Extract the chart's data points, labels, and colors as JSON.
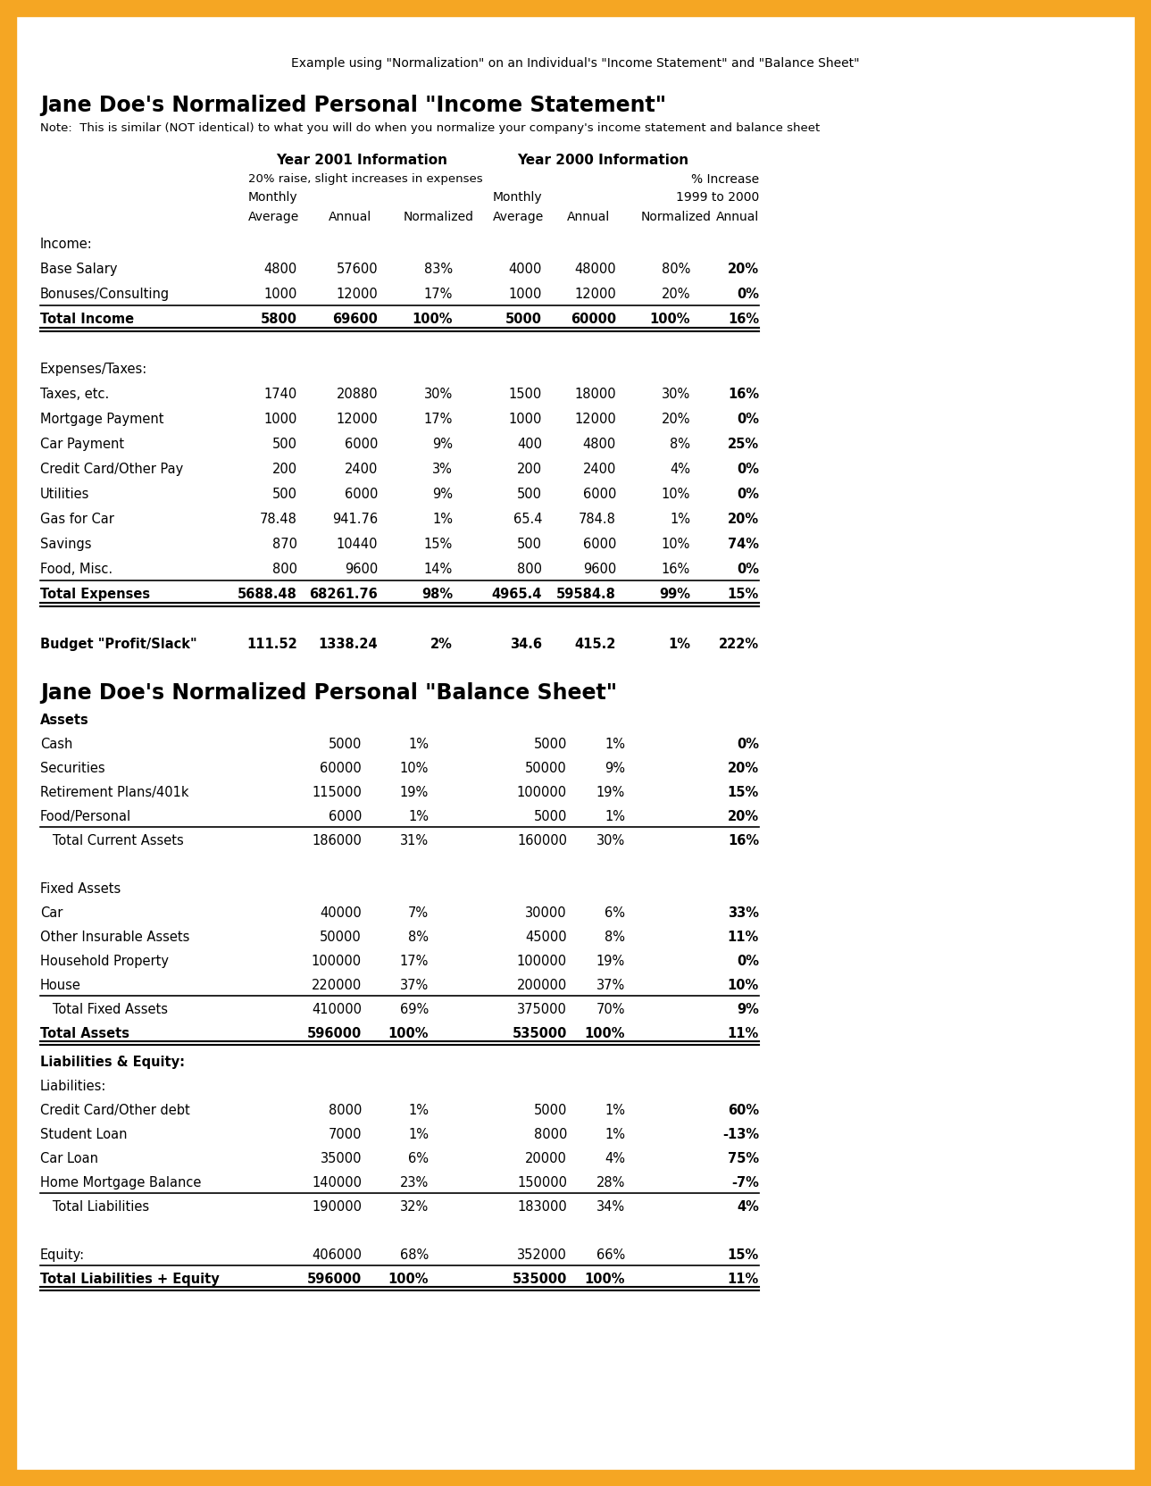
{
  "border_color": "#F5A623",
  "bg_color": "#FFFFFF",
  "top_note": "Example using \"Normalization\" on an Individual's \"Income Statement\" and \"Balance Sheet\"",
  "income_title": "Jane Doe's Normalized Personal \"Income Statement\"",
  "income_note": "Note:  This is similar (NOT identical) to what you will do when you normalize your company's income statement and balance sheet",
  "balance_title": "Jane Doe's Normalized Personal \"Balance Sheet\"",
  "col_headers": {
    "year2001": "Year 2001 Information",
    "year2001_sub": "20% raise, slight increases in expenses",
    "year2000": "Year 2000 Information",
    "monthly": "Monthly",
    "average": "Average",
    "annual": "Annual",
    "normalized": "Normalized",
    "pct_increase": "% Increase",
    "year_range": "1999 to 2000",
    "annual2": "Annual"
  },
  "income_rows": [
    {
      "label": "Income:",
      "bold": false,
      "values": [
        "",
        "",
        "",
        "",
        "",
        "",
        ""
      ],
      "underline": false,
      "double_underline": false
    },
    {
      "label": "Base Salary",
      "bold": false,
      "values": [
        "4800",
        "57600",
        "83%",
        "4000",
        "48000",
        "80%",
        "20%"
      ],
      "underline": false,
      "double_underline": false,
      "last_bold": true
    },
    {
      "label": "Bonuses/Consulting",
      "bold": false,
      "values": [
        "1000",
        "12000",
        "17%",
        "1000",
        "12000",
        "20%",
        "0%"
      ],
      "underline": true,
      "double_underline": false,
      "last_bold": true
    },
    {
      "label": "Total Income",
      "bold": true,
      "values": [
        "5800",
        "69600",
        "100%",
        "5000",
        "60000",
        "100%",
        "16%"
      ],
      "underline": false,
      "double_underline": true,
      "last_bold": true
    },
    {
      "label": "",
      "bold": false,
      "values": [
        "",
        "",
        "",
        "",
        "",
        "",
        ""
      ],
      "underline": false,
      "double_underline": false
    },
    {
      "label": "Expenses/Taxes:",
      "bold": false,
      "values": [
        "",
        "",
        "",
        "",
        "",
        "",
        ""
      ],
      "underline": false,
      "double_underline": false
    },
    {
      "label": "Taxes, etc.",
      "bold": false,
      "values": [
        "1740",
        "20880",
        "30%",
        "1500",
        "18000",
        "30%",
        "16%"
      ],
      "underline": false,
      "double_underline": false,
      "last_bold": true
    },
    {
      "label": "Mortgage Payment",
      "bold": false,
      "values": [
        "1000",
        "12000",
        "17%",
        "1000",
        "12000",
        "20%",
        "0%"
      ],
      "underline": false,
      "double_underline": false,
      "last_bold": true
    },
    {
      "label": "Car Payment",
      "bold": false,
      "values": [
        "500",
        "6000",
        "9%",
        "400",
        "4800",
        "8%",
        "25%"
      ],
      "underline": false,
      "double_underline": false,
      "last_bold": true
    },
    {
      "label": "Credit Card/Other Pay",
      "bold": false,
      "values": [
        "200",
        "2400",
        "3%",
        "200",
        "2400",
        "4%",
        "0%"
      ],
      "underline": false,
      "double_underline": false,
      "last_bold": true
    },
    {
      "label": "Utilities",
      "bold": false,
      "values": [
        "500",
        "6000",
        "9%",
        "500",
        "6000",
        "10%",
        "0%"
      ],
      "underline": false,
      "double_underline": false,
      "last_bold": true
    },
    {
      "label": "Gas for Car",
      "bold": false,
      "values": [
        "78.48",
        "941.76",
        "1%",
        "65.4",
        "784.8",
        "1%",
        "20%"
      ],
      "underline": false,
      "double_underline": false,
      "last_bold": true
    },
    {
      "label": "Savings",
      "bold": false,
      "values": [
        "870",
        "10440",
        "15%",
        "500",
        "6000",
        "10%",
        "74%"
      ],
      "underline": false,
      "double_underline": false,
      "last_bold": true
    },
    {
      "label": "Food, Misc.",
      "bold": false,
      "values": [
        "800",
        "9600",
        "14%",
        "800",
        "9600",
        "16%",
        "0%"
      ],
      "underline": true,
      "double_underline": false,
      "last_bold": true
    },
    {
      "label": "Total Expenses",
      "bold": true,
      "values": [
        "5688.48",
        "68261.76",
        "98%",
        "4965.4",
        "59584.8",
        "99%",
        "15%"
      ],
      "underline": false,
      "double_underline": true,
      "last_bold": true
    },
    {
      "label": "",
      "bold": false,
      "values": [
        "",
        "",
        "",
        "",
        "",
        "",
        ""
      ],
      "underline": false,
      "double_underline": false
    },
    {
      "label": "Budget \"Profit/Slack\"",
      "bold": true,
      "values": [
        "111.52",
        "1338.24",
        "2%",
        "34.6",
        "415.2",
        "1%",
        "222%"
      ],
      "underline": false,
      "double_underline": false,
      "last_bold": true
    }
  ],
  "balance_assets_rows": [
    {
      "label": "Assets",
      "bold": true,
      "values": [
        "",
        "",
        "",
        "",
        ""
      ],
      "underline": false,
      "double_underline": false
    },
    {
      "label": "Cash",
      "bold": false,
      "values": [
        "5000",
        "1%",
        "5000",
        "1%",
        "0%"
      ],
      "underline": false,
      "double_underline": false,
      "last_bold": true
    },
    {
      "label": "Securities",
      "bold": false,
      "values": [
        "60000",
        "10%",
        "50000",
        "9%",
        "20%"
      ],
      "underline": false,
      "double_underline": false,
      "last_bold": true
    },
    {
      "label": "Retirement Plans/401k",
      "bold": false,
      "values": [
        "115000",
        "19%",
        "100000",
        "19%",
        "15%"
      ],
      "underline": false,
      "double_underline": false,
      "last_bold": true
    },
    {
      "label": "Food/Personal",
      "bold": false,
      "values": [
        "6000",
        "1%",
        "5000",
        "1%",
        "20%"
      ],
      "underline": true,
      "double_underline": false,
      "last_bold": true
    },
    {
      "label": "   Total Current Assets",
      "bold": false,
      "values": [
        "186000",
        "31%",
        "160000",
        "30%",
        "16%"
      ],
      "underline": false,
      "double_underline": false,
      "last_bold": true
    },
    {
      "label": "",
      "bold": false,
      "values": [
        "",
        "",
        "",
        "",
        ""
      ],
      "underline": false,
      "double_underline": false
    },
    {
      "label": "Fixed Assets",
      "bold": false,
      "values": [
        "",
        "",
        "",
        "",
        ""
      ],
      "underline": false,
      "double_underline": false
    },
    {
      "label": "Car",
      "bold": false,
      "values": [
        "40000",
        "7%",
        "30000",
        "6%",
        "33%"
      ],
      "underline": false,
      "double_underline": false,
      "last_bold": true
    },
    {
      "label": "Other Insurable Assets",
      "bold": false,
      "values": [
        "50000",
        "8%",
        "45000",
        "8%",
        "11%"
      ],
      "underline": false,
      "double_underline": false,
      "last_bold": true
    },
    {
      "label": "Household Property",
      "bold": false,
      "values": [
        "100000",
        "17%",
        "100000",
        "19%",
        "0%"
      ],
      "underline": false,
      "double_underline": false,
      "last_bold": true
    },
    {
      "label": "House",
      "bold": false,
      "values": [
        "220000",
        "37%",
        "200000",
        "37%",
        "10%"
      ],
      "underline": true,
      "double_underline": false,
      "last_bold": true
    },
    {
      "label": "   Total Fixed Assets",
      "bold": false,
      "values": [
        "410000",
        "69%",
        "375000",
        "70%",
        "9%"
      ],
      "underline": false,
      "double_underline": false,
      "last_bold": true
    },
    {
      "label": "Total Assets",
      "bold": true,
      "values": [
        "596000",
        "100%",
        "535000",
        "100%",
        "11%"
      ],
      "underline": false,
      "double_underline": true,
      "last_bold": true
    }
  ],
  "balance_liab_rows": [
    {
      "label": "Liabilities & Equity:",
      "bold": true,
      "values": [
        "",
        "",
        "",
        "",
        ""
      ],
      "underline": false,
      "double_underline": false
    },
    {
      "label": "Liabilities:",
      "bold": false,
      "values": [
        "",
        "",
        "",
        "",
        ""
      ],
      "underline": false,
      "double_underline": false
    },
    {
      "label": "Credit Card/Other debt",
      "bold": false,
      "values": [
        "8000",
        "1%",
        "5000",
        "1%",
        "60%"
      ],
      "underline": false,
      "double_underline": false,
      "last_bold": true
    },
    {
      "label": "Student Loan",
      "bold": false,
      "values": [
        "7000",
        "1%",
        "8000",
        "1%",
        "-13%"
      ],
      "underline": false,
      "double_underline": false,
      "last_bold": true
    },
    {
      "label": "Car Loan",
      "bold": false,
      "values": [
        "35000",
        "6%",
        "20000",
        "4%",
        "75%"
      ],
      "underline": false,
      "double_underline": false,
      "last_bold": true
    },
    {
      "label": "Home Mortgage Balance",
      "bold": false,
      "values": [
        "140000",
        "23%",
        "150000",
        "28%",
        "-7%"
      ],
      "underline": true,
      "double_underline": false,
      "last_bold": true
    },
    {
      "label": "   Total Liabilities",
      "bold": false,
      "values": [
        "190000",
        "32%",
        "183000",
        "34%",
        "4%"
      ],
      "underline": false,
      "double_underline": false,
      "last_bold": true
    },
    {
      "label": "",
      "bold": false,
      "values": [
        "",
        "",
        "",
        "",
        ""
      ],
      "underline": false,
      "double_underline": false
    },
    {
      "label": "Equity:",
      "bold": false,
      "values": [
        "406000",
        "68%",
        "352000",
        "66%",
        "15%"
      ],
      "underline": true,
      "double_underline": false,
      "last_bold": true
    },
    {
      "label": "Total Liabilities + Equity",
      "bold": true,
      "values": [
        "596000",
        "100%",
        "535000",
        "100%",
        "11%"
      ],
      "underline": false,
      "double_underline": true,
      "last_bold": true
    }
  ]
}
